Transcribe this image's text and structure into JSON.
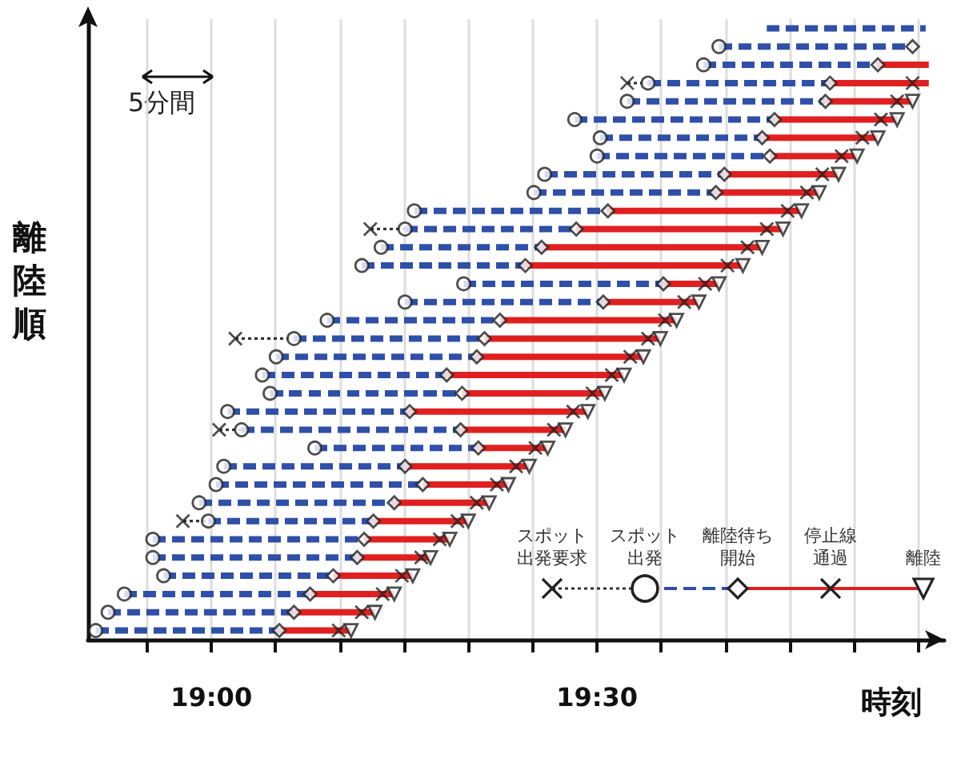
{
  "chart_data": {
    "type": "bar",
    "orientation": "horizontal",
    "xlabel": "時刻",
    "ylabel": "離陸順",
    "annotations": [
      "5分間"
    ],
    "categories": [
      null,
      null,
      null,
      null,
      null,
      null,
      null,
      null,
      null,
      null,
      null,
      null,
      null,
      null,
      null,
      null,
      null,
      null,
      null,
      null,
      null,
      null,
      null,
      null,
      null,
      null,
      null,
      null,
      null,
      null,
      null,
      null,
      null,
      null
    ],
    "series": [
      {
        "color": "#333333",
        "line_style": "dotted",
        "base": [
          null,
          null,
          null,
          19.539,
          null,
          null,
          null,
          null,
          null,
          null,
          null,
          19.206,
          null,
          null,
          null,
          null,
          null,
          19.031,
          null,
          null,
          null,
          null,
          19.01,
          null,
          null,
          null,
          null,
          18.963,
          null,
          null,
          null,
          null,
          null,
          null
        ],
        "values": [
          null,
          null,
          null,
          0.027,
          null,
          null,
          null,
          null,
          null,
          null,
          null,
          0.045,
          null,
          null,
          null,
          null,
          null,
          0.076,
          null,
          null,
          null,
          null,
          0.029,
          null,
          null,
          null,
          null,
          0.033,
          null,
          null,
          null,
          null,
          null,
          null
        ]
      },
      {
        "color": "#2f4fa8",
        "line_style": "dashed",
        "base": [
          19.72,
          19.658,
          19.638,
          19.566,
          19.539,
          19.471,
          19.504,
          19.5,
          19.432,
          19.418,
          19.263,
          19.251,
          19.22,
          19.195,
          19.327,
          19.251,
          19.15,
          19.107,
          19.084,
          19.066,
          19.076,
          19.021,
          19.039,
          19.134,
          19.016,
          19.006,
          18.984,
          18.996,
          18.924,
          18.924,
          18.938,
          18.887,
          18.866,
          18.85
        ],
        "values": [
          0.206,
          0.251,
          0.226,
          0.236,
          0.257,
          0.259,
          0.21,
          0.224,
          0.233,
          0.236,
          0.251,
          0.222,
          0.208,
          0.212,
          0.259,
          0.257,
          0.224,
          0.247,
          0.26,
          0.239,
          0.249,
          0.236,
          0.284,
          0.212,
          0.235,
          0.268,
          0.253,
          0.214,
          0.274,
          0.265,
          0.22,
          0.241,
          0.241,
          0.238
        ]
      },
      {
        "color": "#e02020",
        "line_style": "solid",
        "base": [
          null,
          null,
          19.864,
          19.802,
          19.796,
          19.73,
          19.714,
          19.724,
          19.665,
          19.654,
          19.514,
          19.473,
          19.428,
          19.407,
          19.586,
          19.508,
          19.374,
          19.354,
          19.344,
          19.305,
          19.325,
          19.257,
          19.323,
          19.346,
          19.251,
          19.274,
          19.237,
          19.21,
          19.198,
          19.189,
          19.158,
          19.128,
          19.107,
          19.088
        ],
        "values": [
          null,
          null,
          0.066,
          0.128,
          0.113,
          0.159,
          0.15,
          0.113,
          0.148,
          0.134,
          0.251,
          0.268,
          0.286,
          0.282,
          0.072,
          0.124,
          0.229,
          0.228,
          0.216,
          0.23,
          0.185,
          0.231,
          0.136,
          0.09,
          0.161,
          0.111,
          0.123,
          0.123,
          0.111,
          0.095,
          0.103,
          0.109,
          0.105,
          0.093
        ]
      },
      {
        "type": "scatter",
        "name": "スポット出発要求",
        "color": "#222222",
        "marker": "cross",
        "values": [
          null,
          null,
          null,
          19.539,
          null,
          null,
          null,
          null,
          null,
          null,
          null,
          19.206,
          null,
          null,
          null,
          null,
          null,
          19.031,
          null,
          null,
          null,
          null,
          19.01,
          null,
          null,
          null,
          null,
          18.963,
          null,
          null,
          null,
          null,
          null,
          null
        ]
      },
      {
        "type": "scatter",
        "name": "スポット出発",
        "color": "#222222",
        "marker": "circle",
        "values": [
          null,
          19.658,
          19.638,
          19.566,
          19.539,
          19.471,
          19.504,
          19.5,
          19.432,
          19.418,
          19.263,
          19.251,
          19.22,
          19.195,
          19.327,
          19.251,
          19.15,
          19.107,
          19.084,
          19.066,
          19.076,
          19.021,
          19.039,
          19.134,
          19.016,
          19.006,
          18.984,
          18.996,
          18.924,
          18.924,
          18.938,
          18.887,
          18.866,
          18.85
        ]
      },
      {
        "type": "scatter",
        "name": "離陸待ち開始",
        "color": "#222222",
        "marker": "diamond",
        "values": [
          null,
          19.909,
          19.864,
          19.802,
          19.796,
          19.73,
          19.714,
          19.724,
          19.665,
          19.654,
          19.514,
          19.473,
          19.428,
          19.407,
          19.586,
          19.508,
          19.374,
          19.354,
          19.344,
          19.305,
          19.325,
          19.257,
          19.323,
          19.346,
          19.251,
          19.274,
          19.237,
          19.21,
          19.198,
          19.189,
          19.158,
          19.128,
          19.107,
          19.088
        ]
      },
      {
        "type": "scatter",
        "name": "停止線通過",
        "color": "#222222",
        "marker": "cross",
        "values": [
          null,
          null,
          null,
          19.909,
          19.889,
          19.868,
          19.844,
          19.817,
          19.792,
          19.772,
          19.747,
          19.72,
          19.695,
          19.669,
          19.64,
          19.613,
          19.588,
          19.566,
          19.543,
          19.519,
          19.494,
          19.469,
          19.444,
          19.42,
          19.395,
          19.37,
          19.344,
          19.319,
          19.296,
          19.272,
          19.247,
          19.222,
          19.195,
          19.165
        ]
      },
      {
        "type": "scatter",
        "name": "離陸",
        "color": "#222222",
        "marker": "triangle",
        "values": [
          null,
          null,
          null,
          null,
          19.909,
          19.889,
          19.864,
          19.837,
          19.813,
          19.788,
          19.765,
          19.741,
          19.714,
          19.689,
          19.658,
          19.632,
          19.603,
          19.582,
          19.56,
          19.535,
          19.51,
          19.488,
          19.459,
          19.436,
          19.412,
          19.385,
          19.36,
          19.333,
          19.309,
          19.284,
          19.261,
          19.237,
          19.212,
          19.181
        ]
      }
    ],
    "xlim": [
      18.84,
      19.95
    ],
    "xticks": [
      {
        "value": 18.917,
        "label": null
      },
      {
        "value": 19,
        "label": "19:00"
      },
      {
        "value": 19.083,
        "label": null
      },
      {
        "value": 19.167,
        "label": null
      },
      {
        "value": 19.25,
        "label": null
      },
      {
        "value": 19.333,
        "label": null
      },
      {
        "value": 19.417,
        "label": null
      },
      {
        "value": 19.5,
        "label": "19:30"
      },
      {
        "value": 19.583,
        "label": null
      },
      {
        "value": 19.667,
        "label": null
      },
      {
        "value": 19.75,
        "label": null
      },
      {
        "value": 19.833,
        "label": null
      },
      {
        "value": 19.917,
        "label": null
      }
    ],
    "tick_labels": "x",
    "grid": "x",
    "legend": "bottom right"
  }
}
